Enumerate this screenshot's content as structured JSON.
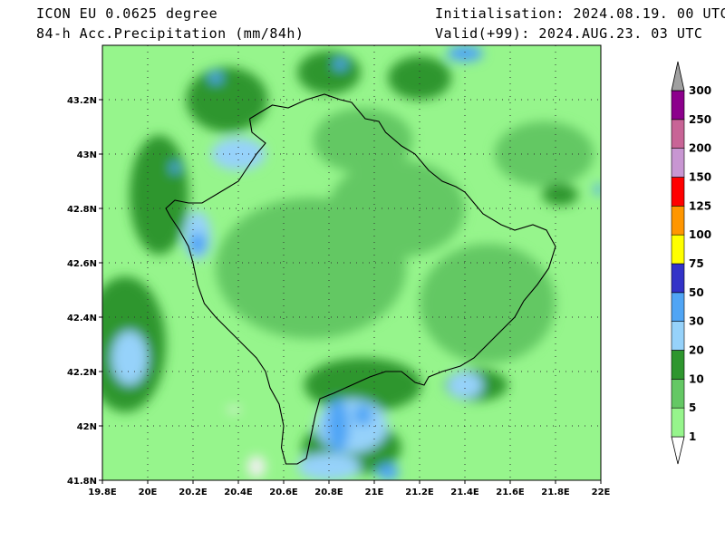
{
  "header": {
    "model": "ICON EU 0.0625 degree",
    "field": "84-h Acc.Precipitation (mm/84h)",
    "init": "Initialisation: 2024.08.19. 00 UTC",
    "valid": "Valid(+99): 2024.AUG.23. 03 UTC"
  },
  "chart_data": {
    "type": "heatmap",
    "title": "84-h Acc.Precipitation (mm/84h)",
    "xlim": [
      19.8,
      22.0
    ],
    "ylim": [
      41.8,
      43.4
    ],
    "x_ticks": [
      {
        "v": 19.8,
        "label": "19.8E"
      },
      {
        "v": 20.0,
        "label": "20E"
      },
      {
        "v": 20.2,
        "label": "20.2E"
      },
      {
        "v": 20.4,
        "label": "20.4E"
      },
      {
        "v": 20.6,
        "label": "20.6E"
      },
      {
        "v": 20.8,
        "label": "20.8E"
      },
      {
        "v": 21.0,
        "label": "21E"
      },
      {
        "v": 21.2,
        "label": "21.2E"
      },
      {
        "v": 21.4,
        "label": "21.4E"
      },
      {
        "v": 21.6,
        "label": "21.6E"
      },
      {
        "v": 21.8,
        "label": "21.8E"
      },
      {
        "v": 22.0,
        "label": "22E"
      }
    ],
    "y_ticks": [
      {
        "v": 41.8,
        "label": "41.8N"
      },
      {
        "v": 42.0,
        "label": "42N"
      },
      {
        "v": 42.2,
        "label": "42.2N"
      },
      {
        "v": 42.4,
        "label": "42.4N"
      },
      {
        "v": 42.6,
        "label": "42.6N"
      },
      {
        "v": 42.8,
        "label": "42.8N"
      },
      {
        "v": 43.0,
        "label": "43N"
      },
      {
        "v": 43.2,
        "label": "43.2N"
      }
    ],
    "grid": true,
    "legend_position": "right",
    "colorbar": [
      {
        "label": "1",
        "color": "#ffffff"
      },
      {
        "label": "5",
        "color": "#96f58c"
      },
      {
        "label": "10",
        "color": "#64c864"
      },
      {
        "label": "20",
        "color": "#2e962e"
      },
      {
        "label": "30",
        "color": "#96d2fa"
      },
      {
        "label": "50",
        "color": "#50a5f5"
      },
      {
        "label": "75",
        "color": "#3232c8"
      },
      {
        "label": "100",
        "color": "#ffff00"
      },
      {
        "label": "125",
        "color": "#ff9600"
      },
      {
        "label": "150",
        "color": "#ff0000"
      },
      {
        "label": "200",
        "color": "#c896d2"
      },
      {
        "label": "250",
        "color": "#c86496"
      },
      {
        "label": "300",
        "color": "#8c008c"
      }
    ],
    "top_color": "#a0a0a0",
    "regions": [
      {
        "level": "5-10",
        "lon": 20.72,
        "lat": 42.58,
        "rlon": 0.42,
        "rlat": 0.26
      },
      {
        "level": "5-10",
        "lon": 21.1,
        "lat": 42.8,
        "rlon": 0.3,
        "rlat": 0.18
      },
      {
        "level": "5-10",
        "lon": 21.5,
        "lat": 42.45,
        "rlon": 0.3,
        "rlat": 0.22
      },
      {
        "level": "5-10",
        "lon": 20.95,
        "lat": 43.05,
        "rlon": 0.22,
        "rlat": 0.12
      },
      {
        "level": "5-10",
        "lon": 21.75,
        "lat": 43.0,
        "rlon": 0.22,
        "rlat": 0.12
      },
      {
        "level": "10-20",
        "lon": 19.9,
        "lat": 42.3,
        "rlon": 0.18,
        "rlat": 0.25
      },
      {
        "level": "10-20",
        "lon": 20.05,
        "lat": 42.85,
        "rlon": 0.13,
        "rlat": 0.22
      },
      {
        "level": "10-20",
        "lon": 20.35,
        "lat": 43.2,
        "rlon": 0.18,
        "rlat": 0.12
      },
      {
        "level": "10-20",
        "lon": 20.8,
        "lat": 43.3,
        "rlon": 0.14,
        "rlat": 0.08
      },
      {
        "level": "10-20",
        "lon": 21.2,
        "lat": 43.28,
        "rlon": 0.14,
        "rlat": 0.08
      },
      {
        "level": "10-20",
        "lon": 20.95,
        "lat": 42.15,
        "rlon": 0.26,
        "rlat": 0.1
      },
      {
        "level": "10-20",
        "lon": 20.9,
        "lat": 41.92,
        "rlon": 0.22,
        "rlat": 0.1
      },
      {
        "level": "10-20",
        "lon": 21.45,
        "lat": 42.15,
        "rlon": 0.14,
        "rlat": 0.06
      },
      {
        "level": "10-20",
        "lon": 21.82,
        "lat": 42.85,
        "rlon": 0.08,
        "rlat": 0.04
      },
      {
        "level": "20-30",
        "lon": 19.92,
        "lat": 42.25,
        "rlon": 0.08,
        "rlat": 0.1
      },
      {
        "level": "20-30",
        "lon": 20.22,
        "lat": 42.7,
        "rlon": 0.06,
        "rlat": 0.09
      },
      {
        "level": "20-30",
        "lon": 20.4,
        "lat": 43.0,
        "rlon": 0.12,
        "rlat": 0.06
      },
      {
        "level": "20-30",
        "lon": 20.9,
        "lat": 42.0,
        "rlon": 0.16,
        "rlat": 0.1
      },
      {
        "level": "20-30",
        "lon": 20.8,
        "lat": 41.85,
        "rlon": 0.14,
        "rlat": 0.05
      },
      {
        "level": "20-30",
        "lon": 21.4,
        "lat": 42.15,
        "rlon": 0.08,
        "rlat": 0.05
      },
      {
        "level": "30-50",
        "lon": 20.84,
        "lat": 42.0,
        "rlon": 0.05,
        "rlat": 0.1
      },
      {
        "level": "30-50",
        "lon": 20.95,
        "lat": 42.04,
        "rlon": 0.04,
        "rlat": 0.04
      },
      {
        "level": "30-50",
        "lon": 21.06,
        "lat": 41.83,
        "rlon": 0.05,
        "rlat": 0.03
      },
      {
        "level": "30-50",
        "lon": 20.22,
        "lat": 42.67,
        "rlon": 0.04,
        "rlat": 0.04
      },
      {
        "level": "30-50",
        "lon": 20.3,
        "lat": 43.28,
        "rlon": 0.03,
        "rlat": 0.02
      },
      {
        "level": "30-50",
        "lon": 20.85,
        "lat": 43.33,
        "rlon": 0.03,
        "rlat": 0.02
      },
      {
        "level": "30-50",
        "lon": 21.4,
        "lat": 43.37,
        "rlon": 0.08,
        "rlat": 0.03
      },
      {
        "level": "30-50",
        "lon": 20.12,
        "lat": 42.95,
        "rlon": 0.02,
        "rlat": 0.02
      },
      {
        "level": "30-50",
        "lon": 21.99,
        "lat": 42.87,
        "rlon": 0.02,
        "rlat": 0.02
      },
      {
        "level": "1-5",
        "lon": 20.48,
        "lat": 41.85,
        "rlon": 0.04,
        "rlat": 0.04
      },
      {
        "level": "1-5",
        "lon": 20.38,
        "lat": 42.06,
        "rlon": 0.03,
        "rlat": 0.01
      }
    ],
    "border": [
      [
        20.45,
        43.13
      ],
      [
        20.55,
        43.18
      ],
      [
        20.62,
        43.17
      ],
      [
        20.7,
        43.2
      ],
      [
        20.78,
        43.22
      ],
      [
        20.85,
        43.2
      ],
      [
        20.9,
        43.19
      ],
      [
        20.96,
        43.13
      ],
      [
        21.02,
        43.12
      ],
      [
        21.05,
        43.08
      ],
      [
        21.12,
        43.03
      ],
      [
        21.18,
        43.0
      ],
      [
        21.24,
        42.94
      ],
      [
        21.3,
        42.9
      ],
      [
        21.36,
        42.88
      ],
      [
        21.4,
        42.86
      ],
      [
        21.44,
        42.82
      ],
      [
        21.48,
        42.78
      ],
      [
        21.56,
        42.74
      ],
      [
        21.62,
        42.72
      ],
      [
        21.7,
        42.74
      ],
      [
        21.76,
        42.72
      ],
      [
        21.8,
        42.66
      ],
      [
        21.77,
        42.58
      ],
      [
        21.72,
        42.52
      ],
      [
        21.66,
        42.46
      ],
      [
        21.62,
        42.4
      ],
      [
        21.56,
        42.35
      ],
      [
        21.5,
        42.3
      ],
      [
        21.44,
        42.25
      ],
      [
        21.38,
        42.22
      ],
      [
        21.3,
        42.2
      ],
      [
        21.24,
        42.18
      ],
      [
        21.22,
        42.15
      ],
      [
        21.18,
        42.16
      ],
      [
        21.12,
        42.2
      ],
      [
        21.05,
        42.2
      ],
      [
        20.98,
        42.18
      ],
      [
        20.9,
        42.15
      ],
      [
        20.82,
        42.12
      ],
      [
        20.76,
        42.1
      ],
      [
        20.74,
        42.04
      ],
      [
        20.72,
        41.96
      ],
      [
        20.7,
        41.88
      ],
      [
        20.66,
        41.86
      ],
      [
        20.61,
        41.86
      ],
      [
        20.59,
        41.92
      ],
      [
        20.6,
        42.0
      ],
      [
        20.58,
        42.08
      ],
      [
        20.54,
        42.14
      ],
      [
        20.52,
        42.2
      ],
      [
        20.48,
        42.25
      ],
      [
        20.42,
        42.3
      ],
      [
        20.36,
        42.35
      ],
      [
        20.3,
        42.4
      ],
      [
        20.25,
        42.45
      ],
      [
        20.22,
        42.52
      ],
      [
        20.2,
        42.6
      ],
      [
        20.18,
        42.66
      ],
      [
        20.14,
        42.72
      ],
      [
        20.1,
        42.77
      ],
      [
        20.08,
        42.8
      ],
      [
        20.12,
        42.83
      ],
      [
        20.18,
        42.82
      ],
      [
        20.24,
        42.82
      ],
      [
        20.3,
        42.85
      ],
      [
        20.34,
        42.87
      ],
      [
        20.4,
        42.9
      ],
      [
        20.44,
        42.95
      ],
      [
        20.48,
        43.0
      ],
      [
        20.52,
        43.04
      ],
      [
        20.46,
        43.08
      ],
      [
        20.45,
        43.13
      ]
    ]
  }
}
